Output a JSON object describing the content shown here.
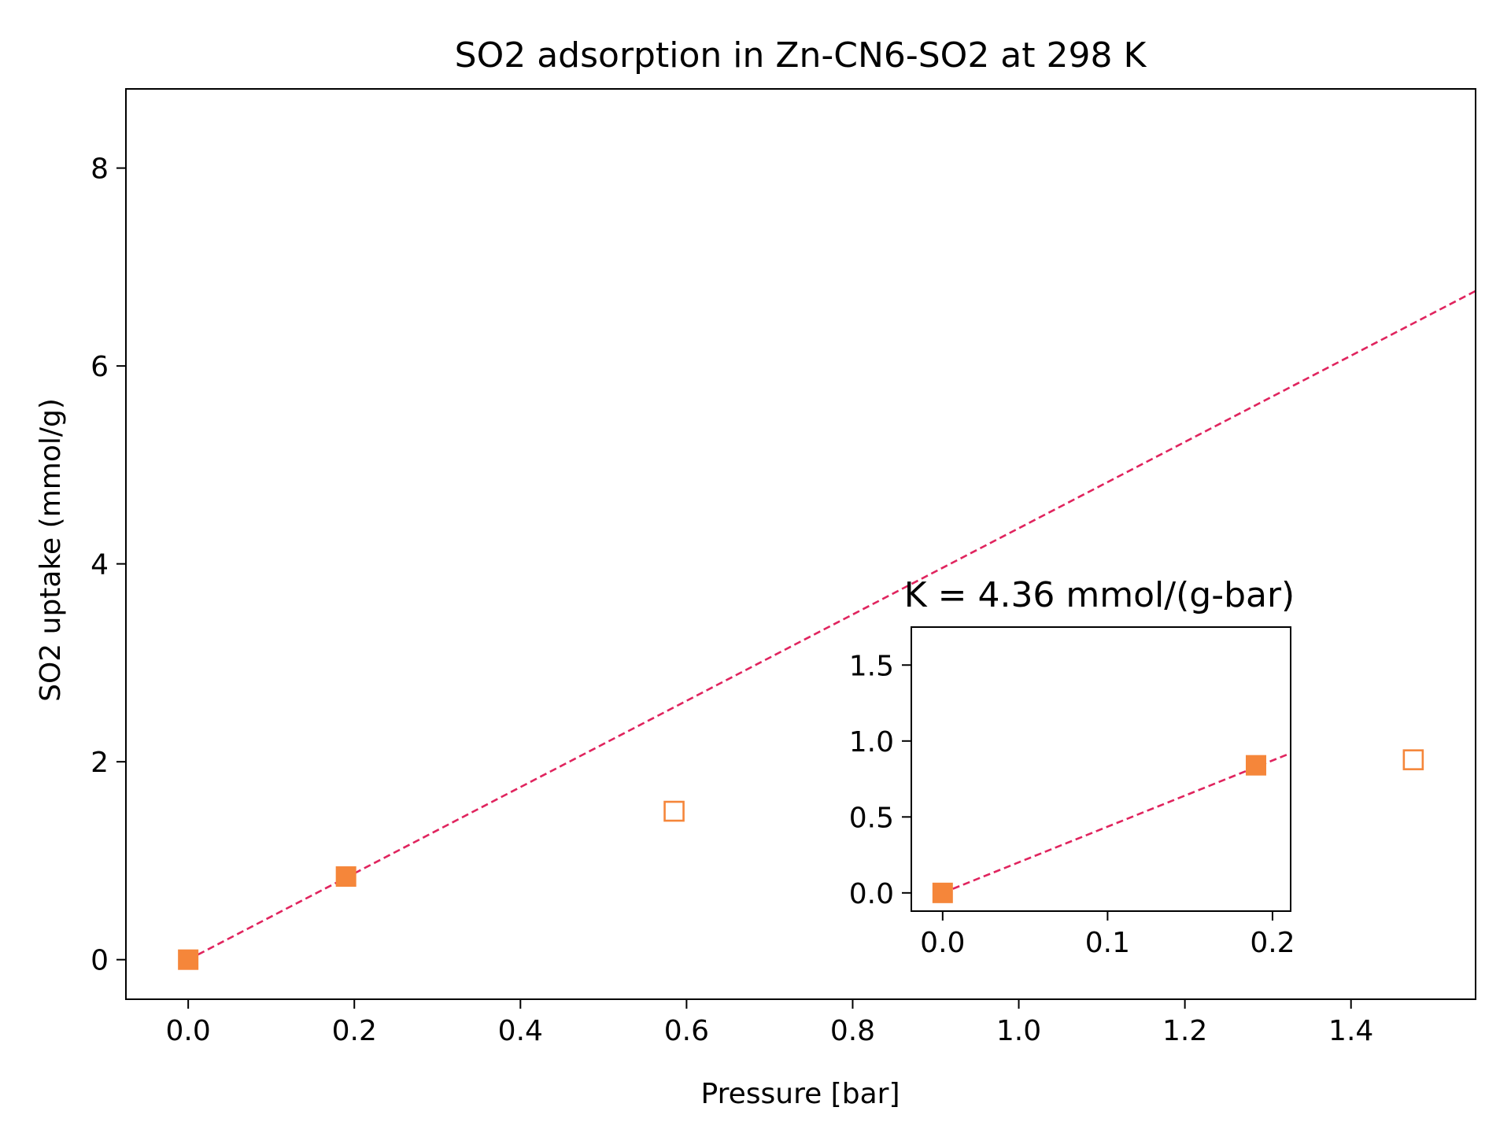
{
  "chart_data": {
    "type": "scatter",
    "title": "SO2 adsorption in Zn-CN6-SO2 at 298 K",
    "xlabel": "Pressure [bar]",
    "ylabel": "SO2 uptake (mmol/g)",
    "xlim": [
      -0.075,
      1.55
    ],
    "ylim": [
      -0.4,
      8.8
    ],
    "xticks": [
      "0.0",
      "0.2",
      "0.4",
      "0.6",
      "0.8",
      "1.0",
      "1.2",
      "1.4"
    ],
    "yticks": [
      "0",
      "2",
      "4",
      "6",
      "8"
    ],
    "grid": false,
    "colors": {
      "marker": "#f5863a",
      "fit": "#e0245e"
    },
    "series": [
      {
        "role": "fit-points",
        "marker": "filled-square",
        "x": [
          0.0,
          0.19
        ],
        "y": [
          0.0,
          0.84
        ]
      },
      {
        "role": "other-points",
        "marker": "open-square",
        "x": [
          0.585,
          1.475
        ],
        "y": [
          1.5,
          2.02
        ]
      }
    ],
    "fit_line": {
      "style": "dashed",
      "slope": 4.36,
      "intercept": 0.0,
      "x_range": [
        0.0,
        1.55
      ]
    },
    "inset": {
      "title": "K = 4.36 mmol/(g-bar)",
      "xlim": [
        -0.019,
        0.211
      ],
      "ylim": [
        -0.12,
        1.75
      ],
      "xticks": [
        "0.0",
        "0.1",
        "0.2"
      ],
      "yticks": [
        "0.0",
        "0.5",
        "1.0",
        "1.5"
      ],
      "points": {
        "marker": "filled-square",
        "x": [
          0.0,
          0.19
        ],
        "y": [
          0.0,
          0.84
        ]
      },
      "fit_line": {
        "style": "dashed",
        "slope": 4.36,
        "intercept": 0.0,
        "x_range": [
          0.0,
          0.211
        ]
      }
    }
  }
}
